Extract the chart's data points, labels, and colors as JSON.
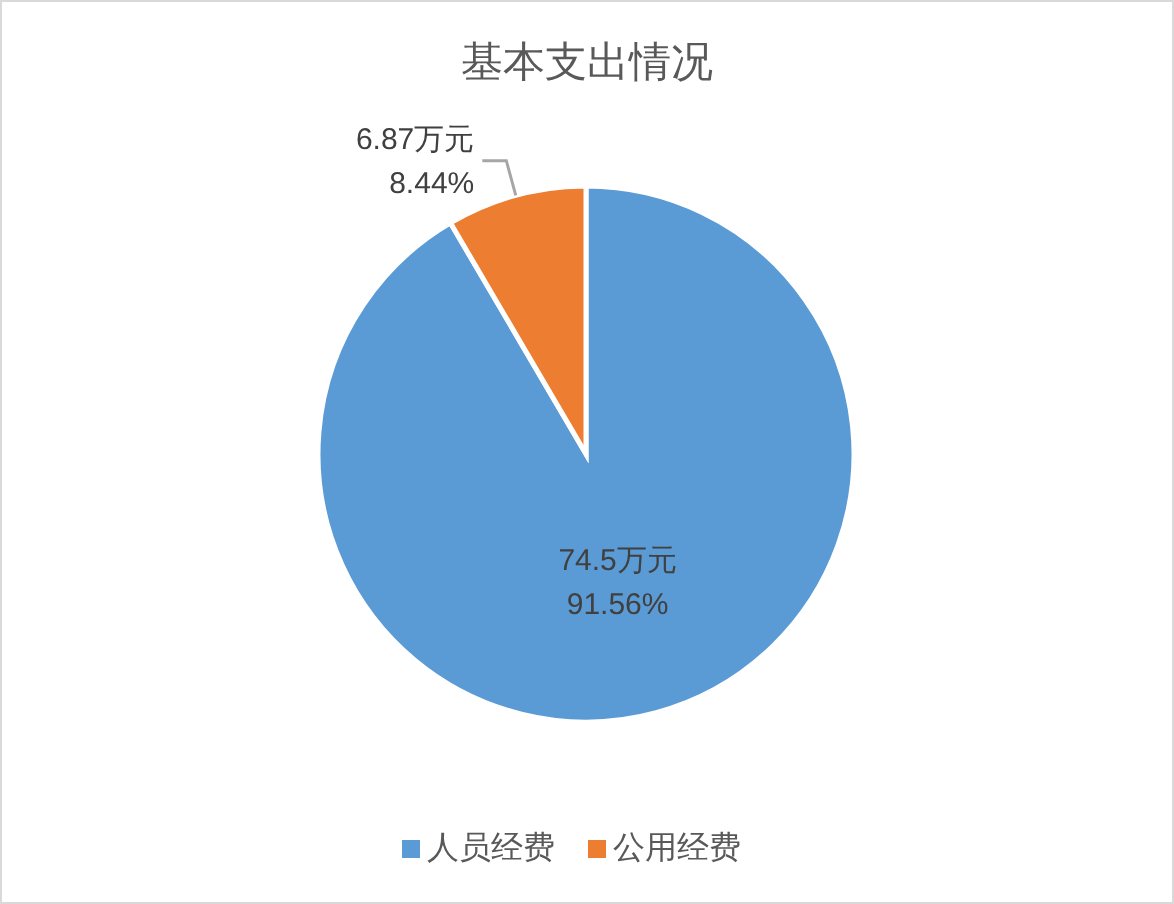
{
  "chart_data": {
    "type": "pie",
    "title": "基本支出情况",
    "categories": [
      "人员经费",
      "公用经费"
    ],
    "values": [
      74.5,
      6.87
    ],
    "colors": [
      "#5b9bd5",
      "#ed7d31"
    ],
    "value_labels": [
      "74.5万元\n91.56%",
      "6.87万元\n8.44%"
    ],
    "legend": "bottom"
  }
}
